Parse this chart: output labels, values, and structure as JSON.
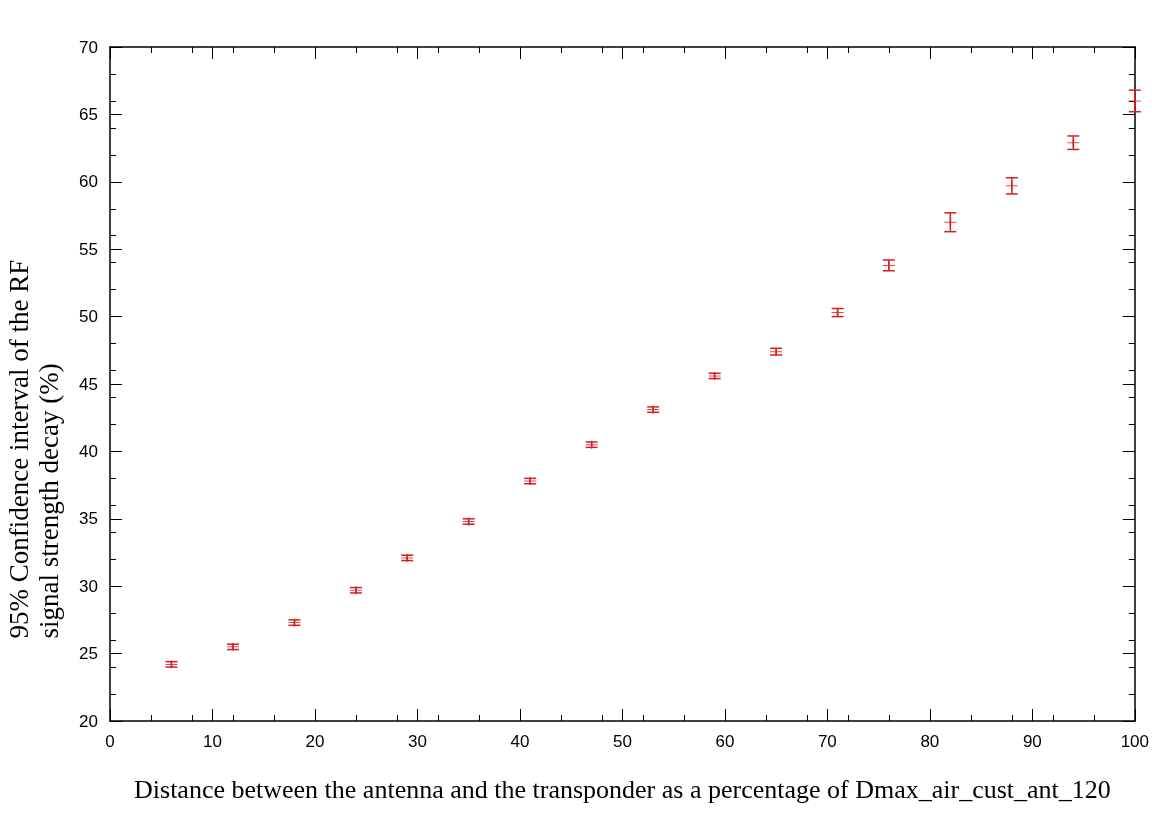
{
  "chart_data": {
    "type": "scatter",
    "xlabel": "Distance between the antenna and the transponder as a percentage of Dmax_air_cust_ant_120",
    "ylabel": "95% Confidence interval of the RF signal strength decay (%)",
    "x": [
      6,
      12,
      18,
      24,
      29,
      35,
      41,
      47,
      53,
      59,
      65,
      71,
      76,
      82,
      88,
      94,
      100
    ],
    "series": [
      {
        "color": "#d42020",
        "values": [
          24.2,
          25.5,
          27.3,
          29.7,
          32.1,
          34.8,
          37.8,
          40.5,
          43.1,
          45.6,
          47.4,
          50.3,
          53.8,
          57.0,
          59.7,
          62.9,
          66.0
        ],
        "errors": [
          0.2,
          0.2,
          0.2,
          0.2,
          0.2,
          0.2,
          0.2,
          0.2,
          0.2,
          0.2,
          0.25,
          0.3,
          0.4,
          0.7,
          0.6,
          0.5,
          0.8
        ]
      }
    ],
    "xlim": [
      0,
      100
    ],
    "xticks": [
      0,
      10,
      20,
      30,
      40,
      50,
      60,
      70,
      80,
      90,
      100
    ],
    "ylim": [
      20,
      70
    ],
    "yticks": [
      20,
      25,
      30,
      35,
      40,
      45,
      50,
      55,
      60,
      65,
      70
    ],
    "grid": false,
    "marker": "cross"
  }
}
